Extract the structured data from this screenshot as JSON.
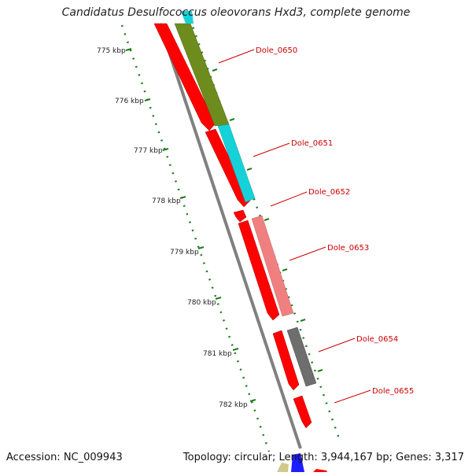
{
  "title": "Candidatus Desulfococcus oleovorans Hxd3, complete genome",
  "accession": "Accession: NC_009943",
  "topology": "Topology: circular; Length: 3,944,167 bp; Genes: 3,317",
  "ruler_labels": [
    "775 kbp",
    "776 kbp",
    "777 kbp",
    "778 kbp",
    "779 kbp",
    "780 kbp",
    "781 kbp",
    "782 kbp"
  ],
  "gene_labels": [
    "Dole_0650",
    "Dole_0651",
    "Dole_0652",
    "Dole_0653",
    "Dole_0654",
    "Dole_0655"
  ],
  "colors": {
    "cds_red": "#ff0000",
    "olive": "#6e8c1e",
    "cyan": "#16d2d8",
    "pink": "#f08080",
    "gray": "#6e6e6e",
    "backbone": "#808080",
    "ruler_green": "#1e7d1e",
    "label_red": "#cc0000"
  }
}
